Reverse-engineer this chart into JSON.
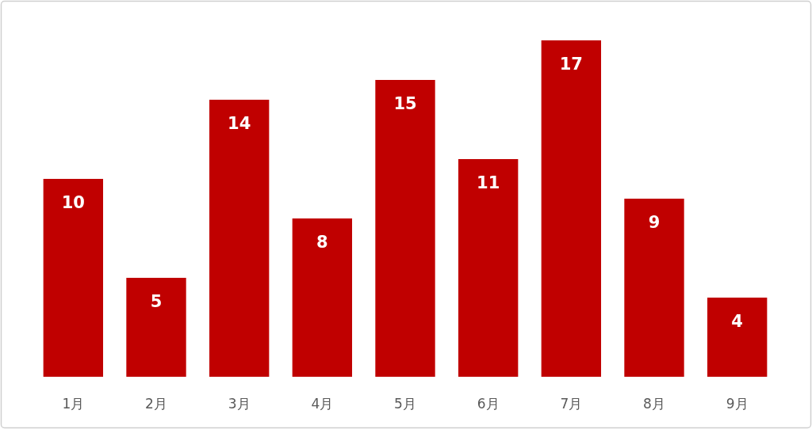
{
  "chart_data": {
    "type": "bar",
    "categories": [
      "1月",
      "2月",
      "3月",
      "4月",
      "5月",
      "6月",
      "7月",
      "8月",
      "9月"
    ],
    "values": [
      10,
      5,
      14,
      8,
      15,
      11,
      17,
      9,
      4
    ],
    "color": "#c00000",
    "data_labels": true
  }
}
